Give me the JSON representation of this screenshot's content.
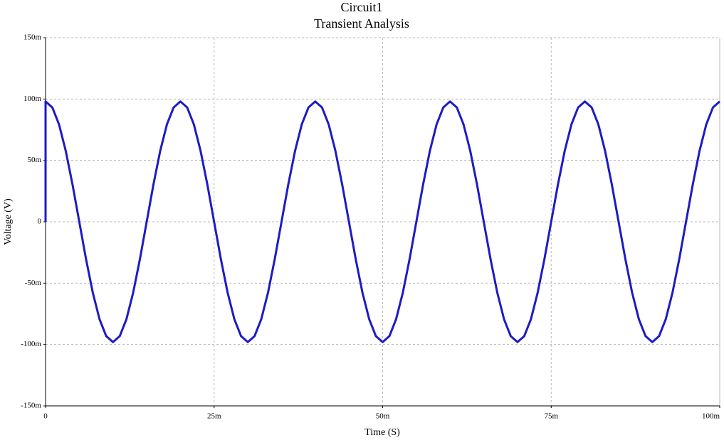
{
  "chart_data": {
    "type": "line",
    "title": "Circuit1",
    "subtitle": "Transient Analysis",
    "x_label": "Time (S)",
    "y_label": "Voltage (V)",
    "x": [
      0,
      0,
      0.001,
      0.002,
      0.003,
      0.004,
      0.005,
      0.006,
      0.007,
      0.008,
      0.009,
      0.01,
      0.011,
      0.012,
      0.013,
      0.014,
      0.015,
      0.016,
      0.017,
      0.018,
      0.019,
      0.02,
      0.021,
      0.022,
      0.023,
      0.024,
      0.025,
      0.026,
      0.027,
      0.028,
      0.029,
      0.03,
      0.031,
      0.032,
      0.033,
      0.034,
      0.035,
      0.036,
      0.037,
      0.038,
      0.039,
      0.04,
      0.041,
      0.042,
      0.043,
      0.044,
      0.045,
      0.046,
      0.047,
      0.048,
      0.049,
      0.05,
      0.051,
      0.052,
      0.053,
      0.054,
      0.055,
      0.056,
      0.057,
      0.058,
      0.059,
      0.06,
      0.061,
      0.062,
      0.063,
      0.064,
      0.065,
      0.066,
      0.067,
      0.068,
      0.069,
      0.07,
      0.071,
      0.072,
      0.073,
      0.074,
      0.075,
      0.076,
      0.077,
      0.078,
      0.079,
      0.08,
      0.081,
      0.082,
      0.083,
      0.084,
      0.085,
      0.086,
      0.087,
      0.088,
      0.089,
      0.09,
      0.091,
      0.092,
      0.093,
      0.094,
      0.095,
      0.096,
      0.097,
      0.098,
      0.099,
      0.1
    ],
    "values": [
      0,
      0.098,
      0.0932,
      0.0793,
      0.0576,
      0.0303,
      0,
      -0.0303,
      -0.0576,
      -0.0793,
      -0.0932,
      -0.098,
      -0.0932,
      -0.0793,
      -0.0576,
      -0.0303,
      0,
      0.0303,
      0.0576,
      0.0793,
      0.0932,
      0.098,
      0.0932,
      0.0793,
      0.0576,
      0.0303,
      0,
      -0.0303,
      -0.0576,
      -0.0793,
      -0.0932,
      -0.098,
      -0.0932,
      -0.0793,
      -0.0576,
      -0.0303,
      0,
      0.0303,
      0.0576,
      0.0793,
      0.0932,
      0.098,
      0.0932,
      0.0793,
      0.0576,
      0.0303,
      0,
      -0.0303,
      -0.0576,
      -0.0793,
      -0.0932,
      -0.098,
      -0.0932,
      -0.0793,
      -0.0576,
      -0.0303,
      0,
      0.0303,
      0.0576,
      0.0793,
      0.0932,
      0.098,
      0.0932,
      0.0793,
      0.0576,
      0.0303,
      0,
      -0.0303,
      -0.0576,
      -0.0793,
      -0.0932,
      -0.098,
      -0.0932,
      -0.0793,
      -0.0576,
      -0.0303,
      0,
      0.0303,
      0.0576,
      0.0793,
      0.0932,
      0.098,
      0.0932,
      0.0793,
      0.0576,
      0.0303,
      0,
      -0.0303,
      -0.0576,
      -0.0793,
      -0.0932,
      -0.098,
      -0.0932,
      -0.0793,
      -0.0576,
      -0.0303,
      0,
      0.0303,
      0.0576,
      0.0793,
      0.0932,
      0.098
    ],
    "color": "#1c1cc4",
    "xlim": [
      0,
      0.1
    ],
    "xticks": [
      0,
      {
        "value": 0.025,
        "label": "25m"
      },
      {
        "value": 0.05,
        "label": "50m"
      },
      {
        "value": 0.075,
        "label": "75m"
      },
      {
        "value": 0.1,
        "label": "100m"
      }
    ],
    "ylim": [
      -0.15,
      0.15
    ],
    "yticks": [
      {
        "value": -0.15,
        "label": "-150m"
      },
      {
        "value": -0.1,
        "label": "-100m"
      },
      {
        "value": -0.05,
        "label": "-50m"
      },
      0,
      {
        "value": 0.05,
        "label": "50m"
      },
      {
        "value": 0.1,
        "label": "100m"
      },
      {
        "value": 0.15,
        "label": "150m"
      }
    ],
    "grid": true
  }
}
